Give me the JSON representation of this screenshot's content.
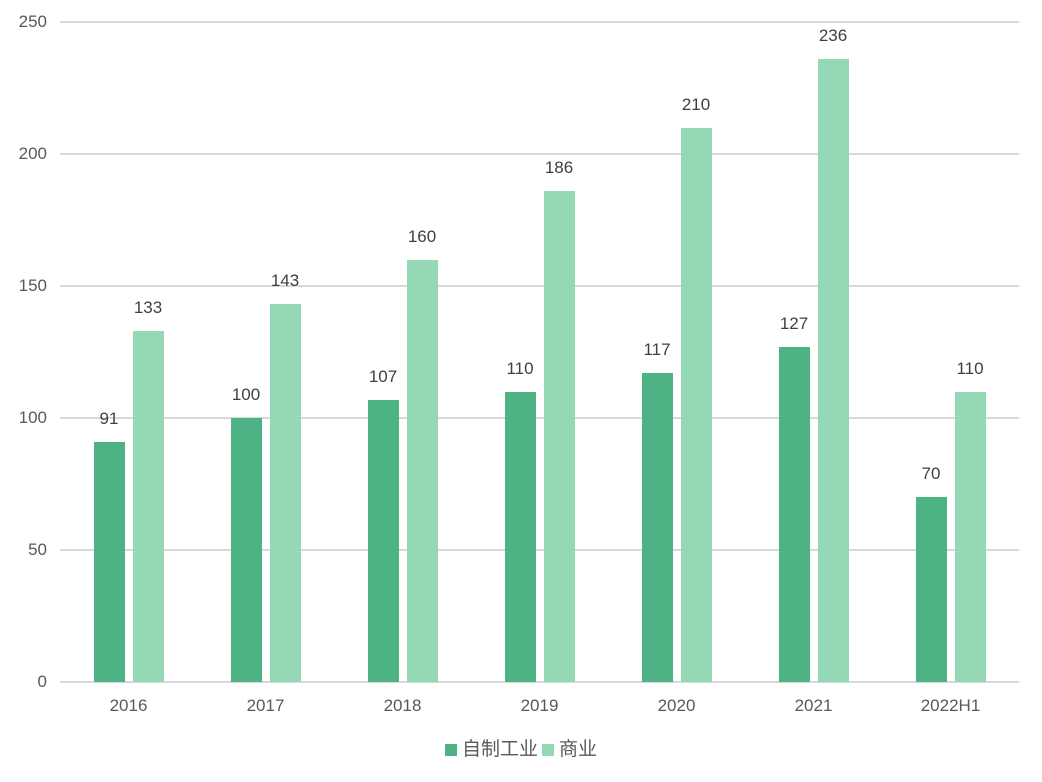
{
  "chart_data": {
    "type": "bar",
    "title": "",
    "xlabel": "",
    "ylabel": "",
    "ylim": [
      0,
      250
    ],
    "yticks": [
      0,
      50,
      100,
      150,
      200,
      250
    ],
    "grid": true,
    "legend_position": "bottom",
    "categories": [
      "2016",
      "2017",
      "2018",
      "2019",
      "2020",
      "2021",
      "2022H1"
    ],
    "series": [
      {
        "name": "自制工业",
        "color": "#4db385",
        "values": [
          91,
          100,
          107,
          110,
          117,
          127,
          70
        ]
      },
      {
        "name": "商业",
        "color": "#95d8b5",
        "values": [
          133,
          143,
          160,
          186,
          210,
          236,
          110
        ]
      }
    ]
  }
}
